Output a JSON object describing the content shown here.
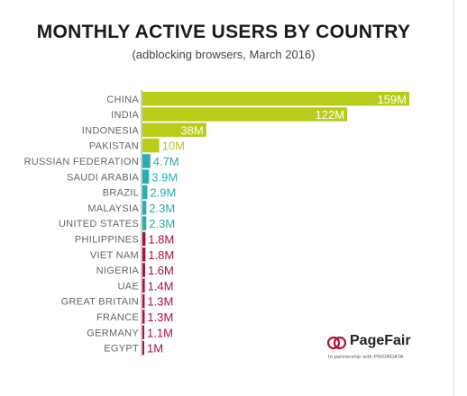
{
  "chart_data": {
    "type": "bar",
    "orientation": "horizontal",
    "title": "MONTHLY ACTIVE USERS BY COUNTRY",
    "subtitle": "(adblocking browsers, March 2016)",
    "categories": [
      "CHINA",
      "INDIA",
      "INDONESIA",
      "PAKISTAN",
      "RUSSIAN FEDERATION",
      "SAUDI ARABIA",
      "BRAZIL",
      "MALAYSIA",
      "UNITED STATES",
      "PHILIPPINES",
      "VIET NAM",
      "NIGERIA",
      "UAE",
      "GREAT BRITAIN",
      "FRANCE",
      "GERMANY",
      "EGYPT"
    ],
    "values": [
      159,
      122,
      38,
      10,
      4.7,
      3.9,
      2.9,
      2.3,
      2.3,
      1.8,
      1.8,
      1.6,
      1.4,
      1.3,
      1.3,
      1.1,
      1
    ],
    "value_labels": [
      "159M",
      "122M",
      "38M",
      "10M",
      "4.7M",
      "3.9M",
      "2.9M",
      "2.3M",
      "2.3M",
      "1.8M",
      "1.8M",
      "1.6M",
      "1.4M",
      "1.3M",
      "1.3M",
      "1.1M",
      "1M"
    ],
    "units": "M",
    "xlim": [
      0,
      159
    ],
    "grid": false,
    "legend": "none",
    "colors": {
      "green": "#b8cc1a",
      "teal": "#26aeb0",
      "red": "#b0103a"
    },
    "bar_colors": [
      "green",
      "green",
      "green",
      "green",
      "teal",
      "teal",
      "teal",
      "teal",
      "teal",
      "red",
      "red",
      "red",
      "red",
      "red",
      "red",
      "red",
      "red"
    ]
  },
  "branding": {
    "name": "PageFair",
    "tagline": "In partnership with PRIORDATA"
  }
}
